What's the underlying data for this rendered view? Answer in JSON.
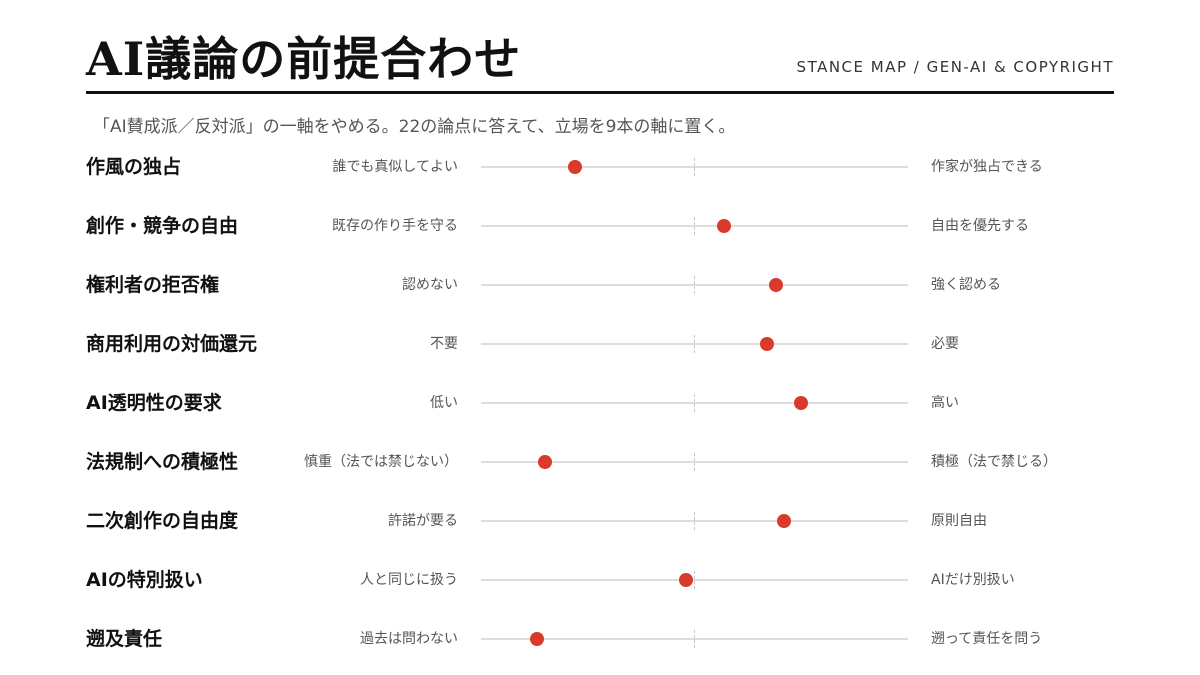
{
  "header": {
    "title": "AI議論の前提合わせ",
    "tag": "STANCE MAP / GEN-AI & COPYRIGHT",
    "subtitle": "「AI賛成派／反対派」の一軸をやめる。22の論点に答えて、立場を9本の軸に置く。"
  },
  "colors": {
    "accent": "#d93a2b",
    "track": "#dddddd",
    "text": "#111111",
    "muted": "#555555"
  },
  "axes": [
    {
      "label": "作風の独占",
      "left": "誰でも真似してよい",
      "right": "作家が独占できる",
      "value": 0.22
    },
    {
      "label": "創作・競争の自由",
      "left": "既存の作り手を守る",
      "right": "自由を優先する",
      "value": 0.57
    },
    {
      "label": "権利者の拒否権",
      "left": "認めない",
      "right": "強く認める",
      "value": 0.69
    },
    {
      "label": "商用利用の対価還元",
      "left": "不要",
      "right": "必要",
      "value": 0.67
    },
    {
      "label": "AI透明性の要求",
      "left": "低い",
      "right": "高い",
      "value": 0.75
    },
    {
      "label": "法規制への積極性",
      "left": "慎重（法では禁じない）",
      "right": "積極（法で禁じる）",
      "value": 0.15
    },
    {
      "label": "二次創作の自由度",
      "left": "許諾が要る",
      "right": "原則自由",
      "value": 0.71
    },
    {
      "label": "AIの特別扱い",
      "left": "人と同じに扱う",
      "right": "AIだけ別扱い",
      "value": 0.48
    },
    {
      "label": "遡及責任",
      "left": "過去は問わない",
      "right": "遡って責任を問う",
      "value": 0.13
    }
  ]
}
